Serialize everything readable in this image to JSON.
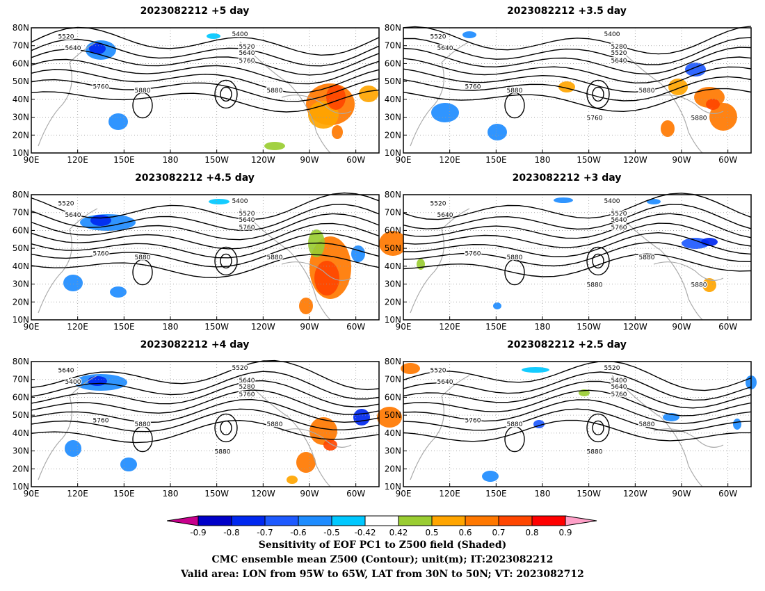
{
  "panels": [
    {
      "title": "2023082212 +5 day",
      "contour_labels": [
        "5520",
        "5640",
        "5400",
        "5520",
        "5640",
        "5760",
        "5760",
        "5880",
        "5880"
      ]
    },
    {
      "title": "2023082212 +3.5 day",
      "contour_labels": [
        "5520",
        "5640",
        "5400",
        "5280",
        "5520",
        "5640",
        "5760",
        "5880",
        "5880",
        "5760",
        "5880"
      ]
    },
    {
      "title": "2023082212 +4.5 day",
      "contour_labels": [
        "5520",
        "5640",
        "5400",
        "5520",
        "5640",
        "5760",
        "5760",
        "5880",
        "5880"
      ]
    },
    {
      "title": "2023082212 +3 day",
      "contour_labels": [
        "5520",
        "5640",
        "5400",
        "5520",
        "5640",
        "5760",
        "5760",
        "5880",
        "5880",
        "5880",
        "5880"
      ]
    },
    {
      "title": "2023082212 +4 day",
      "contour_labels": [
        "5640",
        "5400",
        "5520",
        "5640",
        "5280",
        "5760",
        "5760",
        "5880",
        "5880",
        "5880"
      ]
    },
    {
      "title": "2023082212 +2.5 day",
      "contour_labels": [
        "5520",
        "5640",
        "5520",
        "5400",
        "5640",
        "5760",
        "5760",
        "5880",
        "5880",
        "5880"
      ]
    }
  ],
  "axes": {
    "lat_labels": [
      "10N",
      "20N",
      "30N",
      "40N",
      "50N",
      "60N",
      "70N",
      "80N"
    ],
    "lon_labels": [
      "90E",
      "120E",
      "150E",
      "180",
      "150W",
      "120W",
      "90W",
      "60W"
    ]
  },
  "colorbar": {
    "tick_labels": [
      "-0.9",
      "-0.8",
      "-0.7",
      "-0.6",
      "-0.5",
      "-0.42",
      "0.42",
      "0.5",
      "0.6",
      "0.7",
      "0.8",
      "0.9"
    ],
    "colors": [
      "#c8008c",
      "#0000c8",
      "#0028f0",
      "#1e5aff",
      "#1e8cff",
      "#00c8ff",
      "#ffffff",
      "#9acd32",
      "#ffa500",
      "#ff7800",
      "#ff4600",
      "#ff0000",
      "#ffa0c8"
    ]
  },
  "footer": {
    "line1": "Sensitivity of EOF PC1 to Z500 field (Shaded)",
    "line2": "CMC ensemble mean Z500 (Contour); unit(m); IT:2023082212",
    "line3": "Valid area: LON from 95W to 65W, LAT from 30N to 50N; VT: 2023082712"
  }
}
